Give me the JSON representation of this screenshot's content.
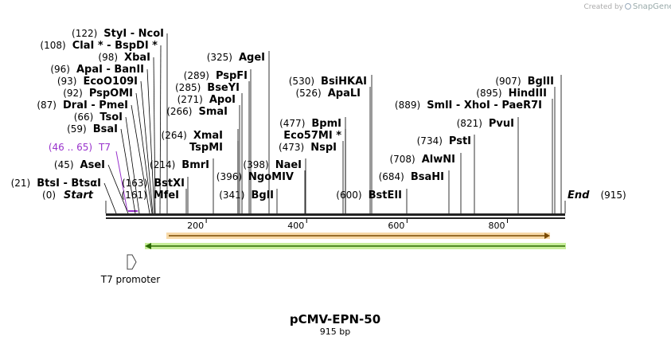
{
  "credit": {
    "prefix": "Created by",
    "brand": "SnapGene"
  },
  "sites": [
    {
      "position": "(122)",
      "enzymes": "StyI  - NcoI"
    },
    {
      "position": "(108)",
      "enzymes": "ClaI * - BspDI *"
    },
    {
      "position": "(98)",
      "enzymes": "XbaI"
    },
    {
      "position": "(96)",
      "enzymes": "ApaI  - BanII"
    },
    {
      "position": "(93)",
      "enzymes": "EcoO109I"
    },
    {
      "position": "(92)",
      "enzymes": "PspOMI"
    },
    {
      "position": "(87)",
      "enzymes": "DraI  - PmeI"
    },
    {
      "position": "(66)",
      "enzymes": "TsoI"
    },
    {
      "position": "(59)",
      "enzymes": "BsaI"
    },
    {
      "position": "(45)",
      "enzymes": "AseI"
    },
    {
      "position": "(21)",
      "enzymes": "BtsI - BtsαI"
    },
    {
      "position": "(163)",
      "enzymes": "BstXI"
    },
    {
      "position": "(161)",
      "enzymes": "MfeI"
    },
    {
      "position": "(214)",
      "enzymes": "BmrI"
    },
    {
      "position": "(264)",
      "enzymes": "XmaI"
    },
    {
      "enzymes": "TspMI"
    },
    {
      "position": "(266)",
      "enzymes": "SmaI"
    },
    {
      "position": "(271)",
      "enzymes": "ApoI"
    },
    {
      "position": "(285)",
      "enzymes": "BseYI"
    },
    {
      "position": "(289)",
      "enzymes": "PspFI"
    },
    {
      "position": "(325)",
      "enzymes": "AgeI"
    },
    {
      "position": "(341)",
      "enzymes": "BglI"
    },
    {
      "position": "(396)",
      "enzymes": "NgoMIV"
    },
    {
      "position": "(398)",
      "enzymes": "NaeI"
    },
    {
      "position": "(473)",
      "enzymes": "NspI"
    },
    {
      "position": "(477)",
      "enzymes": "BpmI"
    },
    {
      "enzymes": "Eco57MI *"
    },
    {
      "position": "(526)",
      "enzymes": "ApaLI"
    },
    {
      "position": "(530)",
      "enzymes": "BsiHKAI"
    },
    {
      "position": "(600)",
      "enzymes": "BstEII"
    },
    {
      "position": "(684)",
      "enzymes": "BsaHI"
    },
    {
      "position": "(708)",
      "enzymes": "AlwNI"
    },
    {
      "position": "(734)",
      "enzymes": "PstI"
    },
    {
      "position": "(821)",
      "enzymes": "PvuI"
    },
    {
      "position": "(889)",
      "enzymes": "SmlI  - XhoI  - PaeR7I"
    },
    {
      "position": "(895)",
      "enzymes": "HindIII"
    },
    {
      "position": "(907)",
      "enzymes": "BglII"
    }
  ],
  "start": {
    "position": "(0)",
    "label": "Start"
  },
  "end": {
    "label": "End",
    "position": "(915)"
  },
  "primer": {
    "position": "(46 .. 65)",
    "label": "T7"
  },
  "ruler": {
    "ticks": [
      200,
      400,
      600,
      800
    ]
  },
  "features": [
    {
      "label": "T7 promoter"
    }
  ],
  "title": "pCMV-EPN-50",
  "length": "915 bp"
}
